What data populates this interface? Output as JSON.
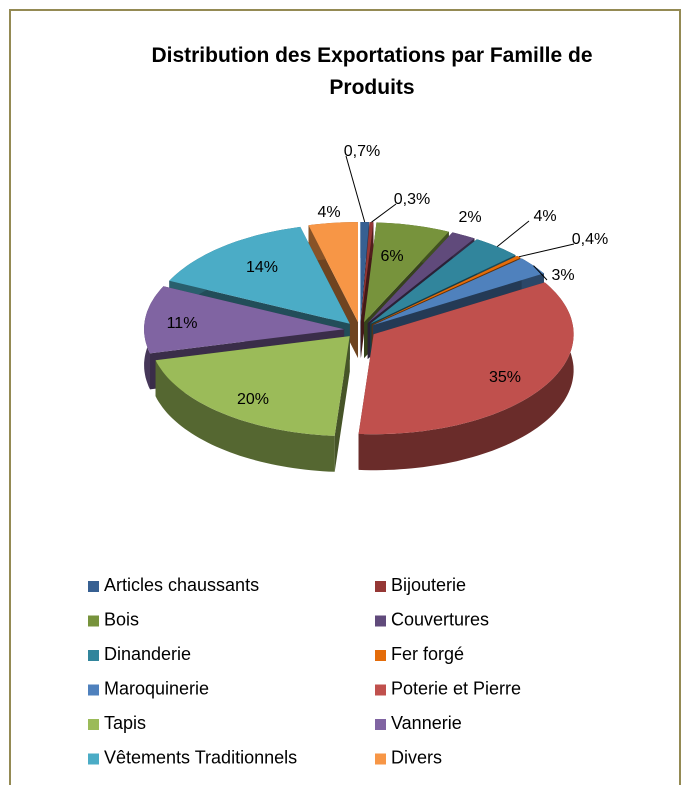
{
  "chart_data": {
    "type": "pie3d",
    "title": "Distribution des Exportations par Famille de Produits",
    "categories": [
      "Articles chaussants",
      "Bijouterie",
      "Bois",
      "Couvertures",
      "Dinanderie",
      "Fer forgé",
      "Maroquinerie",
      "Poterie et Pierre",
      "Tapis",
      "Vannerie",
      "Vêtements Traditionnels",
      "Divers"
    ],
    "values": [
      0.7,
      0.3,
      6,
      2,
      4,
      0.4,
      3,
      35,
      20,
      11,
      14,
      4
    ],
    "value_labels": [
      "0,7%",
      "0,3%",
      "6%",
      "2%",
      "4%",
      "0,4%",
      "3%",
      "35%",
      "20%",
      "11%",
      "14%",
      "4%"
    ],
    "colors": [
      "#376092",
      "#953735",
      "#77933c",
      "#604a7b",
      "#31859c",
      "#e46c0a",
      "#4f81bd",
      "#c0504d",
      "#9bbb59",
      "#8064a2",
      "#4bacc6",
      "#f79646"
    ],
    "legend": "bottom"
  }
}
